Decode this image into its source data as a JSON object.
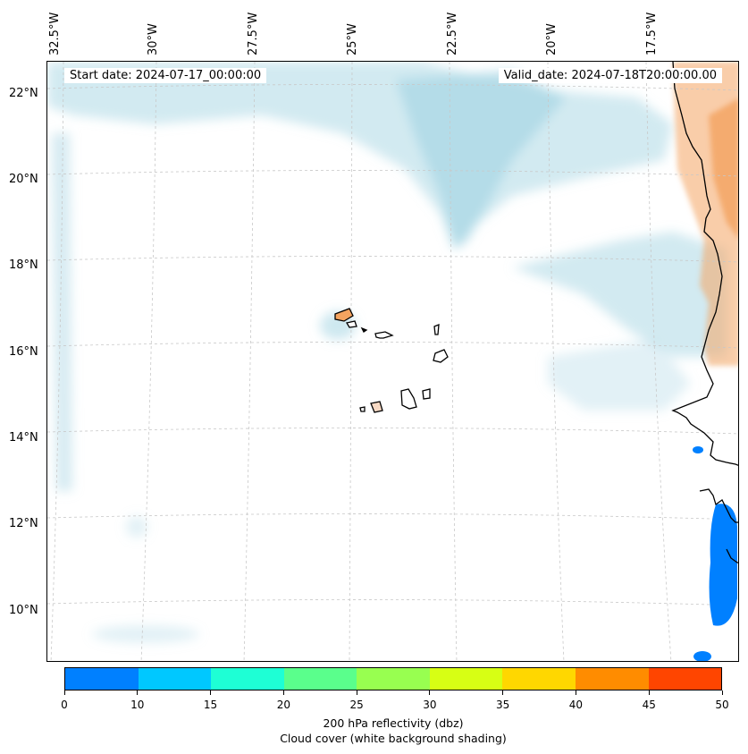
{
  "map": {
    "start_date": "Start date: 2024-07-17_00:00:00",
    "valid_date": "Valid_date: 2024-07-18T20:00:00.00",
    "lon_labels": [
      "32.5°W",
      "30°W",
      "27.5°W",
      "25°W",
      "22.5°W",
      "20°W",
      "17.5°W"
    ],
    "lat_labels": [
      "22°N",
      "20°N",
      "18°N",
      "16°N",
      "14°N",
      "12°N",
      "10°N"
    ],
    "reflectivity_color": "#0080ff",
    "cloud_color": "#add8e6",
    "warm_color": "#f4a460",
    "coast_color": "#000000"
  },
  "colorbar": {
    "ticks": [
      "0",
      "10",
      "15",
      "20",
      "25",
      "30",
      "35",
      "40",
      "45",
      "50"
    ],
    "colors": [
      "#0080ff",
      "#00c8ff",
      "#1effd5",
      "#5aff8c",
      "#98ff50",
      "#d7ff14",
      "#ffd700",
      "#ff8c00",
      "#ff4500"
    ],
    "label_line1": "200 hPa reflectivity (dbz)",
    "label_line2": "Cloud cover (white background shading)"
  }
}
